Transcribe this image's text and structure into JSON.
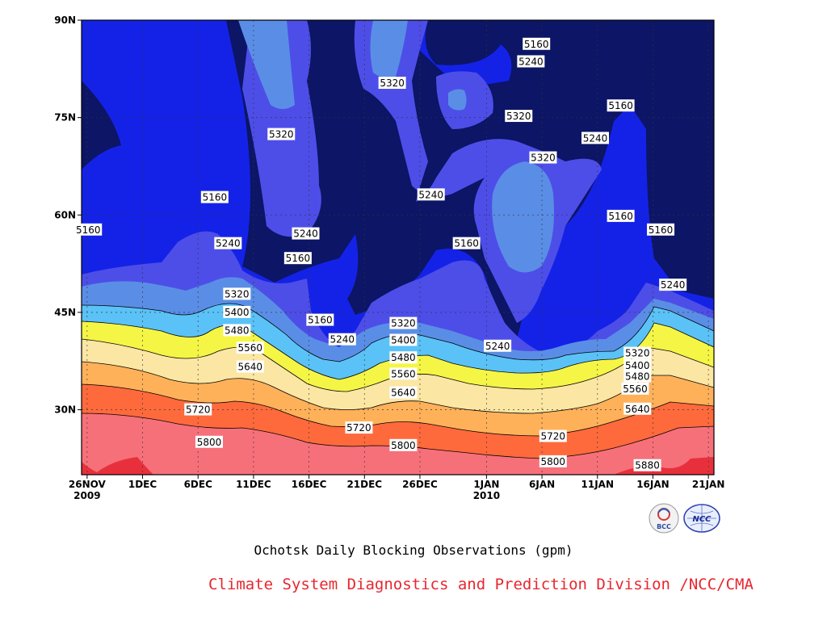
{
  "chart_data": {
    "type": "contour",
    "title": "Ochotsk Daily Blocking Observations (gpm)",
    "credit": "Climate System Diagnostics and Prediction Division /NCC/CMA",
    "x_ticks": [
      {
        "label": "26NOV",
        "sub": "2009",
        "day": 0
      },
      {
        "label": "1DEC",
        "sub": "",
        "day": 5
      },
      {
        "label": "6DEC",
        "sub": "",
        "day": 10
      },
      {
        "label": "11DEC",
        "sub": "",
        "day": 15
      },
      {
        "label": "16DEC",
        "sub": "",
        "day": 20
      },
      {
        "label": "21DEC",
        "sub": "",
        "day": 25
      },
      {
        "label": "26DEC",
        "sub": "",
        "day": 30
      },
      {
        "label": "1JAN",
        "sub": "2010",
        "day": 36
      },
      {
        "label": "6JAN",
        "sub": "",
        "day": 41
      },
      {
        "label": "11JAN",
        "sub": "",
        "day": 46
      },
      {
        "label": "16JAN",
        "sub": "",
        "day": 51
      },
      {
        "label": "21JAN",
        "sub": "",
        "day": 56
      }
    ],
    "y_ticks": [
      {
        "label": "30N",
        "lat": 30
      },
      {
        "label": "45N",
        "lat": 45
      },
      {
        "label": "60N",
        "lat": 60
      },
      {
        "label": "75N",
        "lat": 75
      },
      {
        "label": "90N",
        "lat": 90
      }
    ],
    "x_range_days": [
      -0.5,
      56.5
    ],
    "y_range_lat": [
      20,
      90
    ],
    "contour_levels": [
      5160,
      5240,
      5320,
      5400,
      5480,
      5560,
      5640,
      5720,
      5800,
      5880
    ],
    "fill_colors": [
      "#0c1566",
      "#1422e8",
      "#4d4ee8",
      "#5a8ee6",
      "#5bc2f7",
      "#f5f546",
      "#fbe6a3",
      "#ffb15a",
      "#ff6a3c",
      "#f6707a",
      "#e8303c"
    ],
    "contour_labels": [
      {
        "text": "5160",
        "day": 40.5,
        "lat": 86.3
      },
      {
        "text": "5240",
        "day": 40.0,
        "lat": 83.6
      },
      {
        "text": "5320",
        "day": 27.5,
        "lat": 80.3
      },
      {
        "text": "5320",
        "day": 38.9,
        "lat": 75.2
      },
      {
        "text": "5160",
        "day": 48.1,
        "lat": 76.8
      },
      {
        "text": "5320",
        "day": 17.5,
        "lat": 72.4
      },
      {
        "text": "5240",
        "day": 45.8,
        "lat": 71.8
      },
      {
        "text": "5320",
        "day": 41.1,
        "lat": 68.8
      },
      {
        "text": "5160",
        "day": 11.5,
        "lat": 62.7
      },
      {
        "text": "5240",
        "day": 31.0,
        "lat": 63.1
      },
      {
        "text": "5160",
        "day": 48.1,
        "lat": 59.8
      },
      {
        "text": "5160",
        "day": 0.1,
        "lat": 57.7
      },
      {
        "text": "5160",
        "day": 51.7,
        "lat": 57.7
      },
      {
        "text": "5240",
        "day": 19.7,
        "lat": 57.1
      },
      {
        "text": "5240",
        "day": 12.7,
        "lat": 55.6
      },
      {
        "text": "5160",
        "day": 34.2,
        "lat": 55.6
      },
      {
        "text": "5160",
        "day": 19.0,
        "lat": 53.3
      },
      {
        "text": "5240",
        "day": 52.8,
        "lat": 49.2
      },
      {
        "text": "5320",
        "day": 13.5,
        "lat": 47.8
      },
      {
        "text": "5400",
        "day": 13.5,
        "lat": 45.0
      },
      {
        "text": "5160",
        "day": 21.0,
        "lat": 43.8
      },
      {
        "text": "5320",
        "day": 28.5,
        "lat": 43.3
      },
      {
        "text": "5480",
        "day": 13.5,
        "lat": 42.2
      },
      {
        "text": "5240",
        "day": 23.0,
        "lat": 40.8
      },
      {
        "text": "5400",
        "day": 28.5,
        "lat": 40.7
      },
      {
        "text": "5240",
        "day": 37.0,
        "lat": 39.8
      },
      {
        "text": "5560",
        "day": 14.7,
        "lat": 39.5
      },
      {
        "text": "5320",
        "day": 49.6,
        "lat": 38.7
      },
      {
        "text": "5480",
        "day": 28.5,
        "lat": 38.0
      },
      {
        "text": "5400",
        "day": 49.6,
        "lat": 36.8
      },
      {
        "text": "5640",
        "day": 14.7,
        "lat": 36.6
      },
      {
        "text": "5560",
        "day": 28.5,
        "lat": 35.5
      },
      {
        "text": "5480",
        "day": 49.6,
        "lat": 35.1
      },
      {
        "text": "5560",
        "day": 49.4,
        "lat": 33.2
      },
      {
        "text": "5640",
        "day": 28.5,
        "lat": 32.6
      },
      {
        "text": "5720",
        "day": 10.0,
        "lat": 30.0
      },
      {
        "text": "5640",
        "day": 49.6,
        "lat": 30.1
      },
      {
        "text": "5720",
        "day": 24.5,
        "lat": 27.2
      },
      {
        "text": "5720",
        "day": 42.0,
        "lat": 25.9
      },
      {
        "text": "5800",
        "day": 11.0,
        "lat": 25.0
      },
      {
        "text": "5800",
        "day": 28.5,
        "lat": 24.5
      },
      {
        "text": "5800",
        "day": 42.0,
        "lat": 22.0
      },
      {
        "text": "5880",
        "day": 50.5,
        "lat": 21.4
      }
    ],
    "grid": true
  },
  "logos": {
    "left": "BCC",
    "right": "NCC"
  }
}
